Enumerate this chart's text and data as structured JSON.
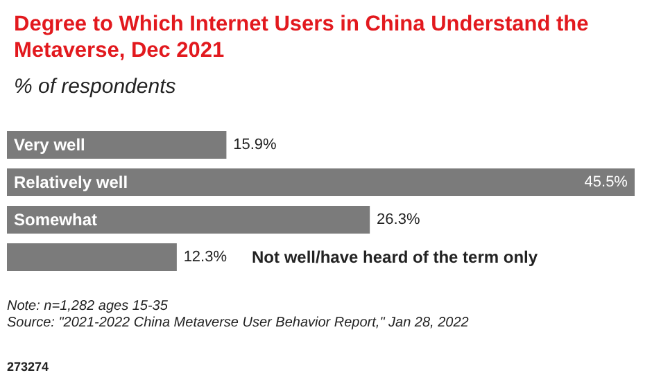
{
  "chart_data": {
    "type": "bar",
    "orientation": "horizontal",
    "title": "Degree to Which Internet Users in China Understand the Metaverse, Dec 2021",
    "subtitle": "% of respondents",
    "categories": [
      "Very well",
      "Relatively well",
      "Somewhat",
      "Not well/have heard of the term only"
    ],
    "values": [
      15.9,
      45.5,
      26.3,
      12.3
    ],
    "color": "#7b7b7b",
    "value_labels": [
      "15.9%",
      "45.5%",
      "26.3%",
      "12.3%"
    ],
    "annotations": [
      "Note: n=1,282 ages 15-35",
      "Source: \"2021-2022 China Metaverse User Behavior Report,\" Jan 28, 2022",
      "273274"
    ]
  }
}
